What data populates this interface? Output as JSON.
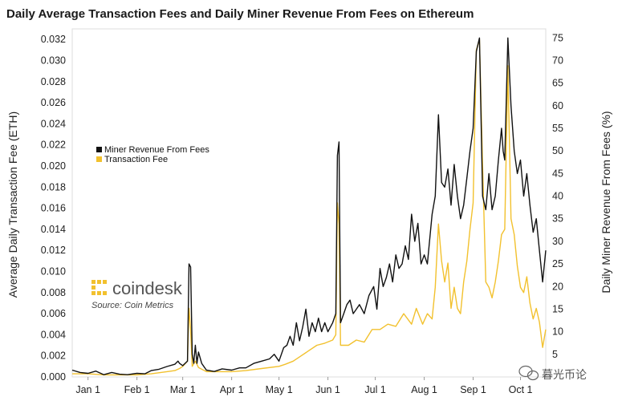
{
  "chart_data": {
    "type": "line",
    "title": "Daily Average Transaction Fees and Daily Miner Revenue From Fees on Ethereum",
    "ylabel": "Average Daily Transaction Fee (ETH)",
    "y2label": "Daily Miner Revenue From Fees (%)",
    "ylim": [
      0,
      0.033
    ],
    "y2lim": [
      0,
      77
    ],
    "y_ticks": [
      "0.000",
      "0.002",
      "0.004",
      "0.006",
      "0.008",
      "0.010",
      "0.012",
      "0.014",
      "0.016",
      "0.018",
      "0.020",
      "0.022",
      "0.024",
      "0.026",
      "0.028",
      "0.030",
      "0.032"
    ],
    "y2_ticks": [
      "5",
      "10",
      "15",
      "20",
      "25",
      "30",
      "35",
      "40",
      "45",
      "50",
      "55",
      "60",
      "65",
      "70",
      "75"
    ],
    "x_ticks": [
      "Jan 1",
      "Feb 1",
      "Mar 1",
      "Apr 1",
      "May 1",
      "Jun 1",
      "Jul 1",
      "Aug 1",
      "Sep 1",
      "Oct 1"
    ],
    "x_tick_days": [
      0,
      31,
      60,
      91,
      121,
      152,
      182,
      213,
      244,
      274
    ],
    "xlim": [
      -10,
      290
    ],
    "legend": [
      {
        "label": "Miner Revenue From Fees",
        "color": "#111111"
      },
      {
        "label": "Transaction Fee",
        "color": "#f2c12e"
      }
    ],
    "legend_position": "upper-left",
    "source": "Source: Coin Metrics",
    "brand": "coindesk",
    "watermark": "暮光币论",
    "series": [
      {
        "name": "Miner Revenue From Fees",
        "axis": "right",
        "color": "#111111",
        "points": [
          [
            -10,
            1.5
          ],
          [
            -5,
            1.0
          ],
          [
            0,
            0.8
          ],
          [
            5,
            1.3
          ],
          [
            10,
            0.5
          ],
          [
            15,
            1.0
          ],
          [
            20,
            0.6
          ],
          [
            25,
            0.5
          ],
          [
            31,
            0.8
          ],
          [
            36,
            0.7
          ],
          [
            40,
            1.4
          ],
          [
            45,
            1.7
          ],
          [
            50,
            2.3
          ],
          [
            55,
            2.8
          ],
          [
            57,
            3.5
          ],
          [
            58,
            3.0
          ],
          [
            60,
            2.5
          ],
          [
            63,
            3.5
          ],
          [
            64,
            25.0
          ],
          [
            65,
            24.3
          ],
          [
            66,
            5.0
          ],
          [
            67,
            3.0
          ],
          [
            68,
            7.0
          ],
          [
            69,
            3.0
          ],
          [
            70,
            5.5
          ],
          [
            72,
            3.0
          ],
          [
            75,
            1.5
          ],
          [
            80,
            1.2
          ],
          [
            85,
            1.8
          ],
          [
            91,
            1.5
          ],
          [
            96,
            2.0
          ],
          [
            100,
            2.0
          ],
          [
            105,
            3.0
          ],
          [
            110,
            3.5
          ],
          [
            115,
            4.0
          ],
          [
            118,
            5.0
          ],
          [
            121,
            3.5
          ],
          [
            124,
            6.5
          ],
          [
            126,
            7.0
          ],
          [
            128,
            9.0
          ],
          [
            130,
            7.0
          ],
          [
            132,
            12.0
          ],
          [
            134,
            8.0
          ],
          [
            136,
            11.0
          ],
          [
            138,
            15.0
          ],
          [
            140,
            9.0
          ],
          [
            142,
            12.0
          ],
          [
            144,
            10.0
          ],
          [
            146,
            13.0
          ],
          [
            148,
            10.0
          ],
          [
            150,
            12.0
          ],
          [
            152,
            10.0
          ],
          [
            155,
            12.0
          ],
          [
            157,
            14.0
          ],
          [
            158,
            49.0
          ],
          [
            159,
            52.0
          ],
          [
            160,
            12.0
          ],
          [
            162,
            14.0
          ],
          [
            164,
            16.0
          ],
          [
            166,
            17.0
          ],
          [
            168,
            14.0
          ],
          [
            170,
            15.0
          ],
          [
            172,
            16.0
          ],
          [
            175,
            14.0
          ],
          [
            178,
            18.0
          ],
          [
            181,
            20.0
          ],
          [
            183,
            15.0
          ],
          [
            185,
            24.0
          ],
          [
            187,
            20.0
          ],
          [
            189,
            22.0
          ],
          [
            191,
            25.0
          ],
          [
            193,
            21.0
          ],
          [
            195,
            27.0
          ],
          [
            197,
            24.0
          ],
          [
            199,
            25.0
          ],
          [
            201,
            29.0
          ],
          [
            203,
            26.0
          ],
          [
            205,
            36.0
          ],
          [
            207,
            30.0
          ],
          [
            209,
            34.0
          ],
          [
            211,
            25.0
          ],
          [
            213,
            27.0
          ],
          [
            215,
            25.0
          ],
          [
            218,
            36.0
          ],
          [
            220,
            40.0
          ],
          [
            222,
            58.0
          ],
          [
            224,
            43.0
          ],
          [
            226,
            42.0
          ],
          [
            228,
            46.0
          ],
          [
            230,
            38.0
          ],
          [
            232,
            47.0
          ],
          [
            234,
            40.0
          ],
          [
            236,
            35.0
          ],
          [
            238,
            38.0
          ],
          [
            240,
            44.0
          ],
          [
            242,
            50.0
          ],
          [
            244,
            55.0
          ],
          [
            246,
            72.0
          ],
          [
            248,
            75.0
          ],
          [
            250,
            40.0
          ],
          [
            252,
            37.0
          ],
          [
            254,
            45.0
          ],
          [
            256,
            37.0
          ],
          [
            258,
            40.0
          ],
          [
            260,
            48.0
          ],
          [
            262,
            55.0
          ],
          [
            263,
            50.0
          ],
          [
            264,
            48.0
          ],
          [
            266,
            75.0
          ],
          [
            268,
            60.0
          ],
          [
            270,
            50.0
          ],
          [
            272,
            45.0
          ],
          [
            274,
            48.0
          ],
          [
            276,
            40.0
          ],
          [
            278,
            45.0
          ],
          [
            280,
            38.0
          ],
          [
            282,
            32.0
          ],
          [
            284,
            35.0
          ],
          [
            286,
            28.0
          ],
          [
            288,
            21.0
          ],
          [
            290,
            28.0
          ]
        ]
      },
      {
        "name": "Transaction Fee",
        "axis": "left",
        "color": "#f2c12e",
        "points": [
          [
            -10,
            0.0003
          ],
          [
            0,
            0.0003
          ],
          [
            10,
            0.0002
          ],
          [
            20,
            0.0002
          ],
          [
            31,
            0.0002
          ],
          [
            40,
            0.0003
          ],
          [
            50,
            0.0005
          ],
          [
            55,
            0.0006
          ],
          [
            58,
            0.0008
          ],
          [
            60,
            0.001
          ],
          [
            63,
            0.0015
          ],
          [
            64,
            0.0065
          ],
          [
            65,
            0.0045
          ],
          [
            66,
            0.001
          ],
          [
            68,
            0.0015
          ],
          [
            70,
            0.0009
          ],
          [
            75,
            0.0005
          ],
          [
            85,
            0.0005
          ],
          [
            91,
            0.0005
          ],
          [
            100,
            0.0006
          ],
          [
            110,
            0.0008
          ],
          [
            121,
            0.001
          ],
          [
            125,
            0.0012
          ],
          [
            130,
            0.0015
          ],
          [
            135,
            0.002
          ],
          [
            140,
            0.0025
          ],
          [
            145,
            0.003
          ],
          [
            150,
            0.0032
          ],
          [
            155,
            0.0035
          ],
          [
            157,
            0.004
          ],
          [
            158,
            0.0165
          ],
          [
            159,
            0.0145
          ],
          [
            160,
            0.003
          ],
          [
            165,
            0.003
          ],
          [
            170,
            0.0035
          ],
          [
            175,
            0.0033
          ],
          [
            180,
            0.0045
          ],
          [
            185,
            0.0045
          ],
          [
            190,
            0.005
          ],
          [
            195,
            0.0048
          ],
          [
            200,
            0.006
          ],
          [
            205,
            0.005
          ],
          [
            208,
            0.0065
          ],
          [
            212,
            0.005
          ],
          [
            215,
            0.006
          ],
          [
            218,
            0.0055
          ],
          [
            220,
            0.0085
          ],
          [
            222,
            0.0145
          ],
          [
            224,
            0.011
          ],
          [
            226,
            0.009
          ],
          [
            228,
            0.0108
          ],
          [
            230,
            0.0065
          ],
          [
            232,
            0.0085
          ],
          [
            234,
            0.0065
          ],
          [
            236,
            0.006
          ],
          [
            238,
            0.009
          ],
          [
            240,
            0.011
          ],
          [
            242,
            0.014
          ],
          [
            244,
            0.0165
          ],
          [
            246,
            0.031
          ],
          [
            248,
            0.032
          ],
          [
            250,
            0.02
          ],
          [
            252,
            0.009
          ],
          [
            254,
            0.0085
          ],
          [
            256,
            0.0075
          ],
          [
            258,
            0.009
          ],
          [
            260,
            0.011
          ],
          [
            262,
            0.0135
          ],
          [
            264,
            0.014
          ],
          [
            266,
            0.0295
          ],
          [
            268,
            0.015
          ],
          [
            270,
            0.0135
          ],
          [
            272,
            0.0105
          ],
          [
            274,
            0.0085
          ],
          [
            276,
            0.008
          ],
          [
            278,
            0.0095
          ],
          [
            280,
            0.007
          ],
          [
            282,
            0.0055
          ],
          [
            284,
            0.0065
          ],
          [
            286,
            0.0052
          ],
          [
            288,
            0.0028
          ],
          [
            290,
            0.0045
          ]
        ]
      }
    ]
  }
}
